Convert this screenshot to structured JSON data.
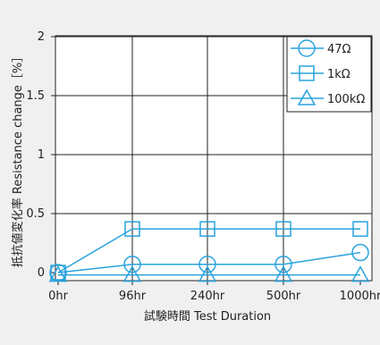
{
  "chart_data": {
    "type": "line",
    "categories": [
      "0hr",
      "96hr",
      "240hr",
      "500hr",
      "1000hr"
    ],
    "ylabel": "抵抗値変化率 Resistance change［%］",
    "xlabel": "試験時間 Test Duration",
    "ylim": [
      0,
      2
    ],
    "yticks": [
      "0",
      "0.5",
      "1",
      "1.5",
      "2"
    ],
    "ytick_values": [
      0,
      0.5,
      1,
      1.5,
      2
    ],
    "grid": true,
    "legend_position": "top-right",
    "series": [
      {
        "name": "47Ω",
        "marker": "circle",
        "color": "#29a3dd",
        "values": [
          0,
          0.07,
          0.07,
          0.07,
          0.17
        ]
      },
      {
        "name": "1kΩ",
        "marker": "square",
        "color": "#29a3dd",
        "values": [
          0,
          0.37,
          0.37,
          0.37,
          0.37
        ]
      },
      {
        "name": "100kΩ",
        "marker": "triangle",
        "color": "#29a3dd",
        "values": [
          -0.02,
          -0.02,
          -0.02,
          -0.02,
          -0.02
        ]
      }
    ]
  }
}
